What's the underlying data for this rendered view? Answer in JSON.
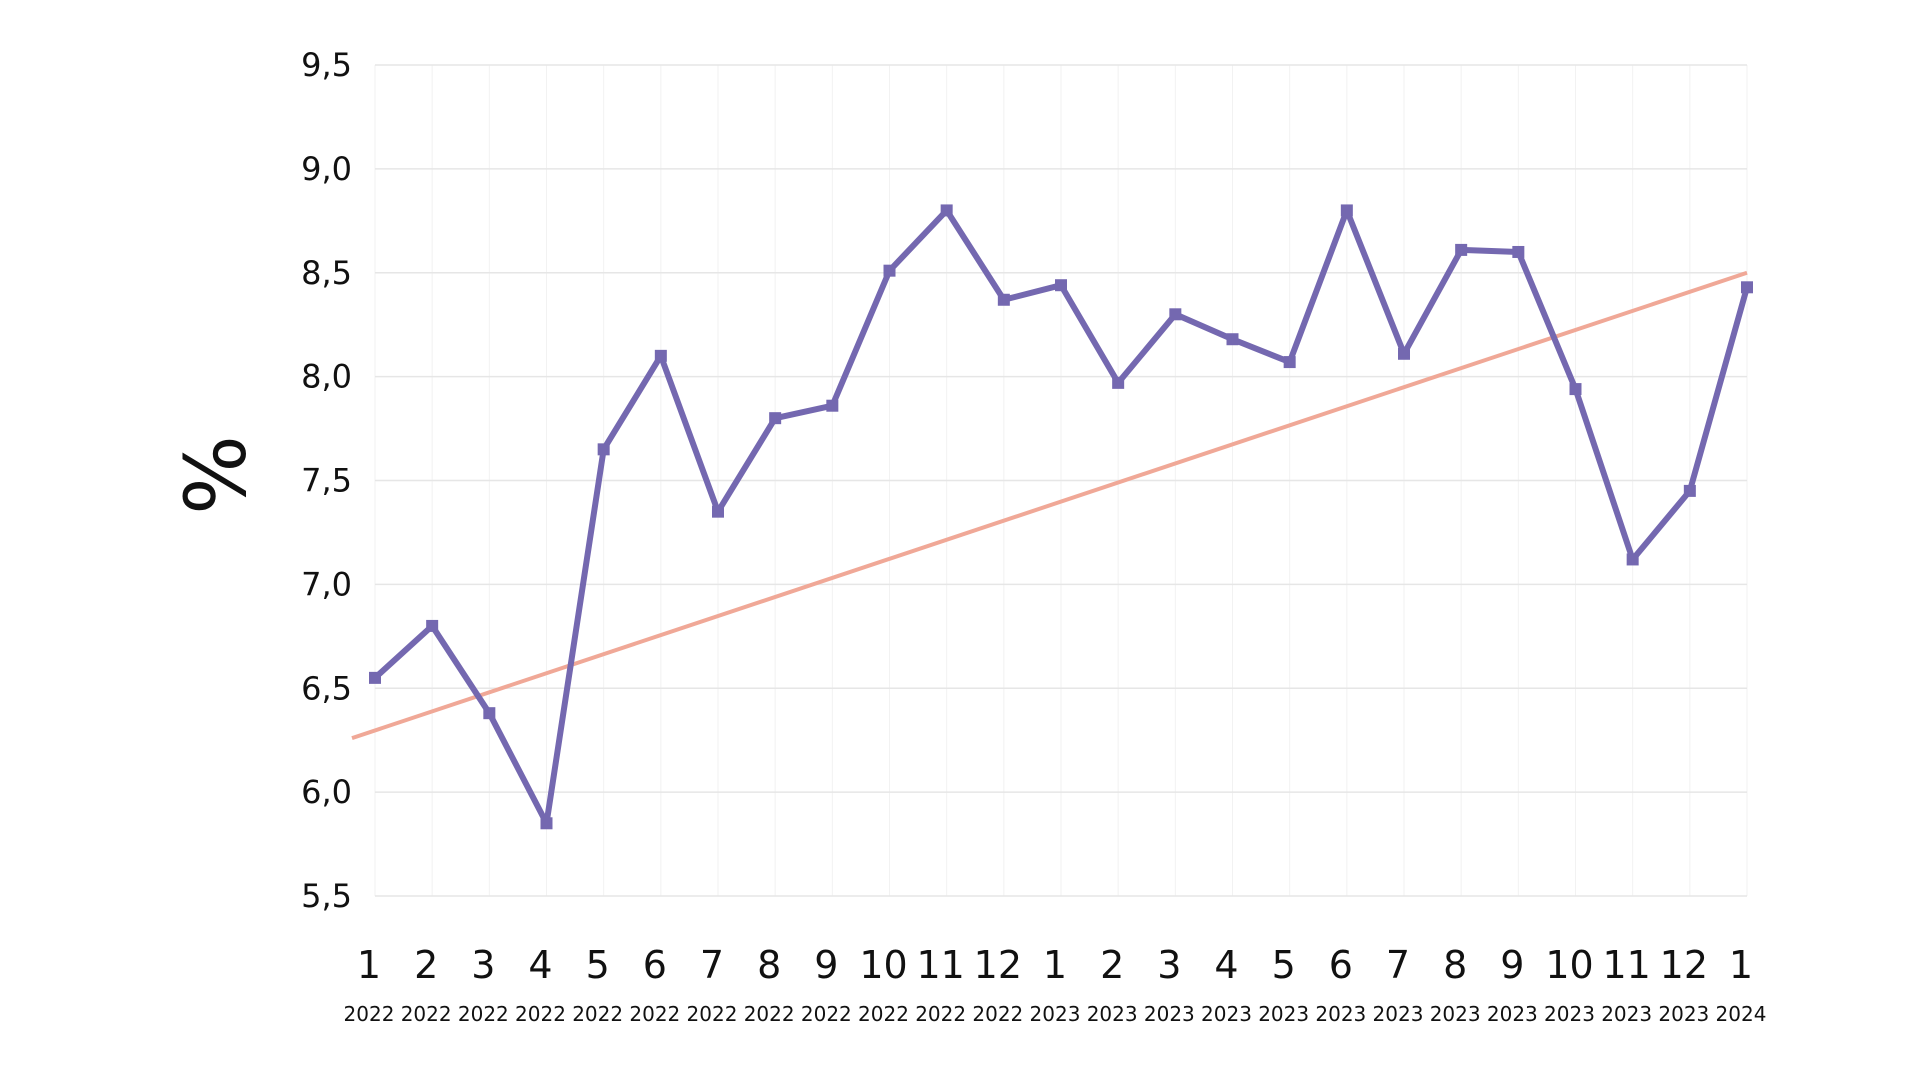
{
  "chart_data": {
    "type": "line",
    "ylabel": "%",
    "xlabel": "",
    "title": "",
    "ylim": [
      5.5,
      9.5
    ],
    "yticks": [
      "9,5",
      "9,0",
      "8,5",
      "8,0",
      "7,5",
      "7,0",
      "6,5",
      "6,0",
      "5,5"
    ],
    "ytick_values": [
      9.5,
      9.0,
      8.5,
      8.0,
      7.5,
      7.0,
      6.5,
      6.0,
      5.5
    ],
    "grid": true,
    "categories": [
      {
        "month": "1",
        "year": "2022"
      },
      {
        "month": "2",
        "year": "2022"
      },
      {
        "month": "3",
        "year": "2022"
      },
      {
        "month": "4",
        "year": "2022"
      },
      {
        "month": "5",
        "year": "2022"
      },
      {
        "month": "6",
        "year": "2022"
      },
      {
        "month": "7",
        "year": "2022"
      },
      {
        "month": "8",
        "year": "2022"
      },
      {
        "month": "9",
        "year": "2022"
      },
      {
        "month": "10",
        "year": "2022"
      },
      {
        "month": "11",
        "year": "2022"
      },
      {
        "month": "12",
        "year": "2022"
      },
      {
        "month": "1",
        "year": "2023"
      },
      {
        "month": "2",
        "year": "2023"
      },
      {
        "month": "3",
        "year": "2023"
      },
      {
        "month": "4",
        "year": "2023"
      },
      {
        "month": "5",
        "year": "2023"
      },
      {
        "month": "6",
        "year": "2023"
      },
      {
        "month": "7",
        "year": "2023"
      },
      {
        "month": "8",
        "year": "2023"
      },
      {
        "month": "9",
        "year": "2023"
      },
      {
        "month": "10",
        "year": "2023"
      },
      {
        "month": "11",
        "year": "2023"
      },
      {
        "month": "12",
        "year": "2023"
      },
      {
        "month": "1",
        "year": "2024"
      }
    ],
    "series": [
      {
        "color": "#7468b0",
        "marker": "square",
        "values": [
          6.55,
          6.8,
          6.38,
          5.85,
          7.65,
          8.1,
          7.35,
          7.8,
          7.86,
          8.51,
          8.8,
          8.37,
          8.44,
          7.97,
          8.3,
          8.18,
          8.07,
          8.8,
          8.11,
          8.61,
          8.6,
          7.94,
          7.12,
          7.45,
          8.43
        ]
      }
    ],
    "trendline": {
      "color": "#f0a897",
      "start": 6.26,
      "end": 8.5
    }
  }
}
